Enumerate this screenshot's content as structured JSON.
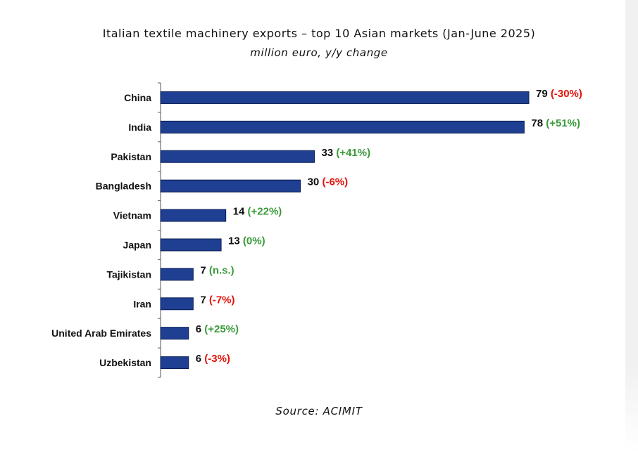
{
  "header": {
    "title": "Italian textile machinery exports – top 10 Asian markets (Jan-June 2025)",
    "subtitle": "million euro, y/y change"
  },
  "footer": {
    "source": "Source: ACIMIT"
  },
  "colors": {
    "bar_fill": "#1f3f92",
    "bar_stroke": "#0d1f55",
    "negative_change": "#e3120b",
    "positive_change": "#3a9a3a",
    "value_text": "#111111"
  },
  "chart_data": {
    "type": "bar",
    "orientation": "horizontal",
    "categories": [
      "China",
      "India",
      "Pakistan",
      "Bangladesh",
      "Vietnam",
      "Japan",
      "Tajikistan",
      "Iran",
      "United Arab Emirates",
      "Uzbekistan"
    ],
    "values": [
      79,
      78,
      33,
      30,
      14,
      13,
      7,
      7,
      6,
      6
    ],
    "value_labels": [
      "79",
      "78",
      "33",
      "30",
      "14",
      "13",
      "7",
      "7",
      "6",
      "6"
    ],
    "changes": [
      "(-30%)",
      "(+51%)",
      "(+41%)",
      "(-6%)",
      "(+22%)",
      "(0%)",
      "(n.s.)",
      "(-7%)",
      "(+25%)",
      "(-3%)"
    ],
    "change_sign": [
      "neg",
      "pos",
      "pos",
      "neg",
      "pos",
      "pos",
      "pos",
      "neg",
      "pos",
      "neg"
    ],
    "title": "Italian textile machinery exports – top 10 Asian markets (Jan-June 2025)",
    "subtitle": "million euro, y/y change",
    "xlim": [
      0,
      79
    ],
    "grid": false,
    "legend": "none"
  }
}
